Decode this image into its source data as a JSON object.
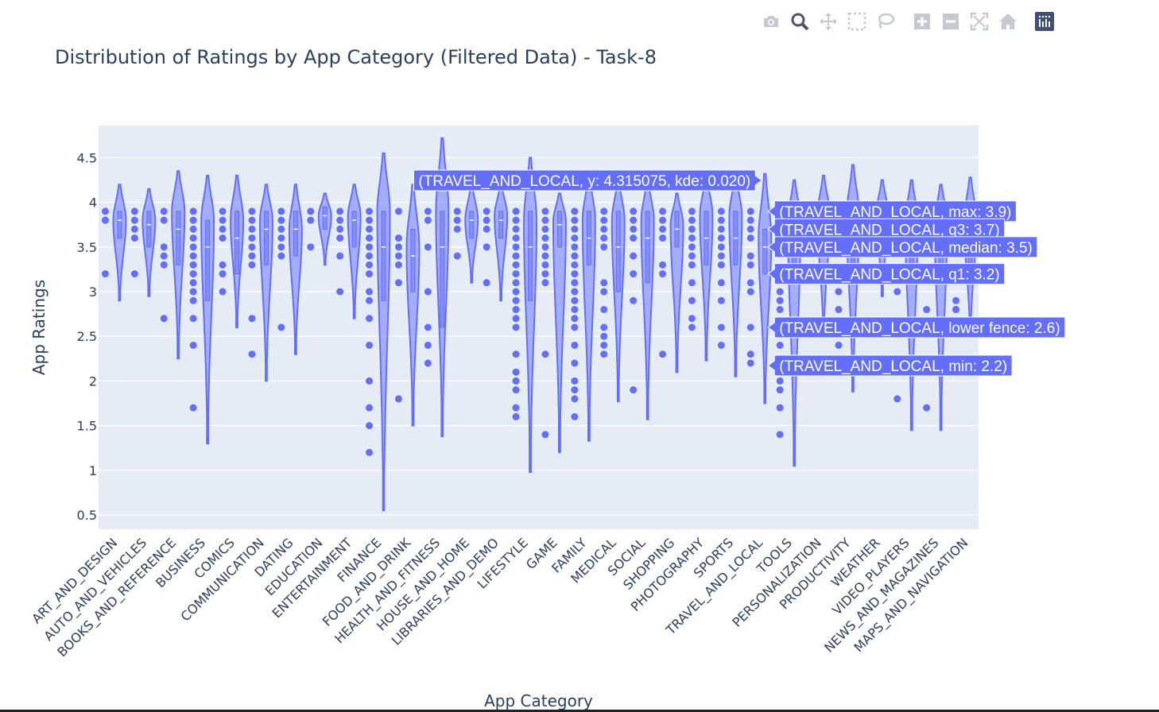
{
  "modebar": {
    "camera": "camera-icon",
    "zoom": "zoom-icon",
    "pan": "pan-icon",
    "box_select": "box-select-icon",
    "lasso": "lasso-icon",
    "zoom_in": "zoom-in-icon",
    "zoom_out": "zoom-out-icon",
    "autoscale": "autoscale-icon",
    "reset": "home-icon",
    "logo": "plotly-logo-icon"
  },
  "chart_data": {
    "type": "violin",
    "title": "Distribution of Ratings by App Category (Filtered Data) - Task-8",
    "xlabel": "App Category",
    "ylabel": "App Ratings",
    "ylim": [
      0.34,
      4.86
    ],
    "yticks": [
      "0.5",
      "1",
      "1.5",
      "2",
      "2.5",
      "3",
      "3.5",
      "4",
      "4.5"
    ],
    "yticks_values": [
      0.5,
      1,
      1.5,
      2,
      2.5,
      3,
      3.5,
      4,
      4.5
    ],
    "color": "#636efa",
    "plot_bg": "#e5ecf6",
    "categories": [
      "ART_AND_DESIGN",
      "AUTO_AND_VEHICLES",
      "BOOKS_AND_REFERENCE",
      "BUSINESS",
      "COMICS",
      "COMMUNICATION",
      "DATING",
      "EDUCATION",
      "ENTERTAINMENT",
      "FINANCE",
      "FOOD_AND_DRINK",
      "HEALTH_AND_FITNESS",
      "HOUSE_AND_HOME",
      "LIBRARIES_AND_DEMO",
      "LIFESTYLE",
      "GAME",
      "FAMILY",
      "MEDICAL",
      "SOCIAL",
      "SHOPPING",
      "PHOTOGRAPHY",
      "SPORTS",
      "TRAVEL_AND_LOCAL",
      "TOOLS",
      "PERSONALIZATION",
      "PRODUCTIVITY",
      "WEATHER",
      "VIDEO_PLAYERS",
      "NEWS_AND_MAGAZINES",
      "MAPS_AND_NAVIGATION"
    ],
    "violins": [
      {
        "min": 2.9,
        "max": 4.2,
        "mode": 3.8,
        "q1": 3.6,
        "median": 3.8,
        "q3": 3.9
      },
      {
        "min": 2.95,
        "max": 4.15,
        "mode": 3.8,
        "q1": 3.5,
        "median": 3.75,
        "q3": 3.9
      },
      {
        "min": 2.25,
        "max": 4.35,
        "mode": 3.9,
        "q1": 3.3,
        "median": 3.7,
        "q3": 3.9
      },
      {
        "min": 1.3,
        "max": 4.3,
        "mode": 3.8,
        "q1": 2.9,
        "median": 3.5,
        "q3": 3.8
      },
      {
        "min": 2.6,
        "max": 4.3,
        "mode": 3.8,
        "q1": 3.2,
        "median": 3.6,
        "q3": 3.9
      },
      {
        "min": 2.0,
        "max": 4.2,
        "mode": 3.8,
        "q1": 3.3,
        "median": 3.7,
        "q3": 3.9
      },
      {
        "min": 2.3,
        "max": 4.2,
        "mode": 3.7,
        "q1": 3.4,
        "median": 3.7,
        "q3": 3.9
      },
      {
        "min": 3.3,
        "max": 4.1,
        "mode": 3.85,
        "q1": 3.7,
        "median": 3.85,
        "q3": 3.95
      },
      {
        "min": 2.7,
        "max": 4.2,
        "mode": 3.85,
        "q1": 3.5,
        "median": 3.8,
        "q3": 3.9
      },
      {
        "min": 0.55,
        "max": 4.55,
        "mode": 3.9,
        "q1": 2.9,
        "median": 3.5,
        "q3": 3.9
      },
      {
        "min": 1.5,
        "max": 4.2,
        "mode": 3.5,
        "q1": 3.0,
        "median": 3.4,
        "q3": 3.7
      },
      {
        "min": 1.38,
        "max": 4.72,
        "mode": 3.9,
        "q1": 2.6,
        "median": 3.5,
        "q3": 3.9
      },
      {
        "min": 3.1,
        "max": 4.2,
        "mode": 3.8,
        "q1": 3.6,
        "median": 3.8,
        "q3": 3.9
      },
      {
        "min": 2.9,
        "max": 4.2,
        "mode": 3.85,
        "q1": 3.6,
        "median": 3.8,
        "q3": 3.9
      },
      {
        "min": 0.98,
        "max": 4.5,
        "mode": 3.8,
        "q1": 2.9,
        "median": 3.5,
        "q3": 3.9
      },
      {
        "min": 1.2,
        "max": 4.1,
        "mode": 3.8,
        "q1": 3.5,
        "median": 3.75,
        "q3": 3.9
      },
      {
        "min": 1.33,
        "max": 4.3,
        "mode": 3.8,
        "q1": 3.3,
        "median": 3.6,
        "q3": 3.9
      },
      {
        "min": 1.77,
        "max": 4.25,
        "mode": 3.8,
        "q1": 3.0,
        "median": 3.5,
        "q3": 3.9
      },
      {
        "min": 1.57,
        "max": 4.25,
        "mode": 3.8,
        "q1": 3.1,
        "median": 3.6,
        "q3": 3.9
      },
      {
        "min": 2.1,
        "max": 4.1,
        "mode": 3.75,
        "q1": 3.5,
        "median": 3.7,
        "q3": 3.9
      },
      {
        "min": 2.23,
        "max": 4.3,
        "mode": 3.85,
        "q1": 3.3,
        "median": 3.6,
        "q3": 3.9
      },
      {
        "min": 2.05,
        "max": 4.3,
        "mode": 3.85,
        "q1": 3.3,
        "median": 3.6,
        "q3": 3.9
      },
      {
        "min": 1.75,
        "max": 4.32,
        "mode": 3.6,
        "q1": 3.2,
        "median": 3.5,
        "q3": 3.7
      },
      {
        "min": 1.05,
        "max": 4.25,
        "mode": 3.8,
        "q1": 3.2,
        "median": 3.6,
        "q3": 3.9
      },
      {
        "min": 2.5,
        "max": 4.3,
        "mode": 3.85,
        "q1": 3.4,
        "median": 3.7,
        "q3": 3.9
      },
      {
        "min": 1.88,
        "max": 4.42,
        "mode": 3.85,
        "q1": 3.3,
        "median": 3.7,
        "q3": 3.9
      },
      {
        "min": 2.95,
        "max": 4.25,
        "mode": 3.85,
        "q1": 3.5,
        "median": 3.75,
        "q3": 3.9
      },
      {
        "min": 1.45,
        "max": 4.25,
        "mode": 3.8,
        "q1": 3.2,
        "median": 3.6,
        "q3": 3.9
      },
      {
        "min": 1.45,
        "max": 4.2,
        "mode": 3.8,
        "q1": 3.2,
        "median": 3.6,
        "q3": 3.9
      },
      {
        "min": 2.5,
        "max": 4.28,
        "mode": 3.8,
        "q1": 3.3,
        "median": 3.6,
        "q3": 3.9
      }
    ],
    "outlier_points": [
      [
        3.9,
        3.8,
        3.8,
        3.2
      ],
      [
        3.9,
        3.8,
        3.7,
        3.6,
        3.2
      ],
      [
        3.9,
        3.8,
        3.5,
        3.4,
        3.3,
        2.7
      ],
      [
        3.9,
        3.8,
        3.7,
        3.6,
        3.5,
        3.4,
        3.3,
        3.2,
        3.1,
        3.0,
        2.9,
        2.7,
        2.4,
        1.7
      ],
      [
        3.9,
        3.8,
        3.7,
        3.6,
        3.3,
        3.2,
        3.0
      ],
      [
        3.9,
        3.8,
        3.7,
        3.6,
        3.5,
        3.4,
        3.3,
        2.7,
        2.3
      ],
      [
        3.9,
        3.8,
        3.7,
        3.6,
        3.5,
        3.4,
        2.6
      ],
      [
        3.9,
        3.8,
        3.5
      ],
      [
        3.9,
        3.8,
        3.7,
        3.6,
        3.4,
        3.0
      ],
      [
        3.9,
        3.8,
        3.7,
        3.6,
        3.5,
        3.4,
        3.3,
        3.2,
        3.0,
        2.9,
        2.7,
        2.4,
        2.0,
        1.7,
        1.5,
        1.2
      ],
      [
        3.9,
        3.6,
        3.5,
        3.4,
        3.3,
        3.1,
        1.8
      ],
      [
        3.9,
        3.8,
        3.5,
        3.0,
        2.6,
        2.4,
        2.2
      ],
      [
        3.9,
        3.8,
        3.7,
        3.4
      ],
      [
        3.9,
        3.8,
        3.7,
        3.5,
        3.1
      ],
      [
        3.9,
        3.8,
        3.7,
        3.6,
        3.5,
        3.4,
        3.3,
        3.2,
        3.1,
        3.0,
        2.9,
        2.8,
        2.7,
        2.6,
        2.3,
        2.1,
        2.0,
        1.9,
        1.7,
        1.6
      ],
      [
        3.9,
        3.8,
        3.7,
        3.6,
        3.5,
        3.4,
        3.3,
        3.2,
        3.1,
        2.3,
        1.4
      ],
      [
        3.9,
        3.8,
        3.7,
        3.6,
        3.5,
        3.4,
        3.3,
        3.2,
        3.1,
        3.0,
        2.9,
        2.8,
        2.7,
        2.6,
        2.4,
        2.2,
        2.0,
        1.9,
        1.8,
        1.6
      ],
      [
        3.9,
        3.8,
        3.7,
        3.6,
        3.5,
        3.1,
        3.0,
        2.8,
        2.6,
        2.5,
        2.4,
        2.3
      ],
      [
        3.9,
        3.8,
        3.7,
        3.6,
        3.4,
        3.2,
        2.9,
        1.9
      ],
      [
        3.9,
        3.8,
        3.7,
        3.6,
        3.3,
        3.2,
        2.3
      ],
      [
        3.9,
        3.8,
        3.7,
        3.6,
        3.5,
        3.4,
        3.3,
        3.1,
        2.9,
        2.7,
        2.6
      ],
      [
        3.9,
        3.8,
        3.7,
        3.6,
        3.5,
        3.4,
        3.3,
        3.1,
        2.9,
        2.6,
        2.4
      ],
      [
        3.9,
        3.8,
        3.7,
        3.6,
        3.4,
        3.3,
        3.1,
        3.0,
        2.6,
        2.3,
        2.2
      ],
      [
        3.0,
        2.9,
        2.8,
        2.6,
        2.4,
        2.2,
        2.0,
        1.9,
        1.7,
        1.4
      ],
      [],
      [
        3.0,
        2.8,
        2.4
      ],
      [],
      [
        3.0,
        1.8
      ],
      [
        2.8,
        1.7
      ],
      [
        2.9,
        2.8,
        2.8
      ]
    ],
    "hover": {
      "main": "(TRAVEL_AND_LOCAL, y: 4.315075, kde: 0.020)",
      "labels": [
        {
          "text": "(TRAVEL_AND_LOCAL, max: 3.9)",
          "y": 3.9
        },
        {
          "text": "(TRAVEL_AND_LOCAL, q3: 3.7)",
          "y": 3.7
        },
        {
          "text": "(TRAVEL_AND_LOCAL, median: 3.5)",
          "y": 3.5
        },
        {
          "text": "(TRAVEL_AND_LOCAL, q1: 3.2)",
          "y": 3.2
        },
        {
          "text": "(TRAVEL_AND_LOCAL, lower fence: 2.6)",
          "y": 2.6
        },
        {
          "text": "(TRAVEL_AND_LOCAL, min: 2.2)",
          "y": 2.2
        }
      ]
    }
  }
}
